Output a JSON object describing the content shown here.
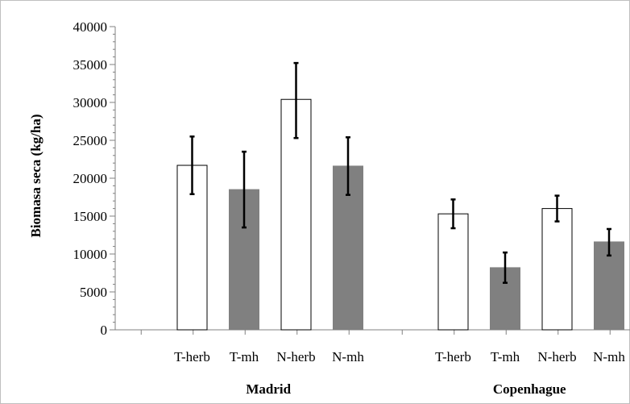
{
  "chart_data": {
    "type": "bar",
    "ylabel": "Biomasa seca (kg/ha)",
    "xlabel": "",
    "ylim": [
      0,
      40000
    ],
    "ytick_step": 5000,
    "minor_tick_step": 1000,
    "grid": false,
    "legend": "none",
    "colors": {
      "open": "#ffffff",
      "filled": "#808080",
      "stroke": "#000000",
      "error": "#000000"
    },
    "groups": [
      {
        "name": "Madrid",
        "bars": [
          {
            "category": "T-herb",
            "value": 21700,
            "error_low": 17900,
            "error_high": 25500,
            "fill": "open"
          },
          {
            "category": "T-mh",
            "value": 18500,
            "error_low": 13500,
            "error_high": 23500,
            "fill": "filled"
          },
          {
            "category": "N-herb",
            "value": 30400,
            "error_low": 25300,
            "error_high": 35200,
            "fill": "open"
          },
          {
            "category": "N-mh",
            "value": 21600,
            "error_low": 17800,
            "error_high": 25400,
            "fill": "filled"
          }
        ]
      },
      {
        "name": "Copenhague",
        "bars": [
          {
            "category": "T-herb",
            "value": 15300,
            "error_low": 13400,
            "error_high": 17200,
            "fill": "open"
          },
          {
            "category": "T-mh",
            "value": 8200,
            "error_low": 6200,
            "error_high": 10200,
            "fill": "filled"
          },
          {
            "category": "N-herb",
            "value": 16000,
            "error_low": 14300,
            "error_high": 17700,
            "fill": "open"
          },
          {
            "category": "N-mh",
            "value": 11600,
            "error_low": 9800,
            "error_high": 13300,
            "fill": "filled"
          }
        ]
      }
    ]
  }
}
